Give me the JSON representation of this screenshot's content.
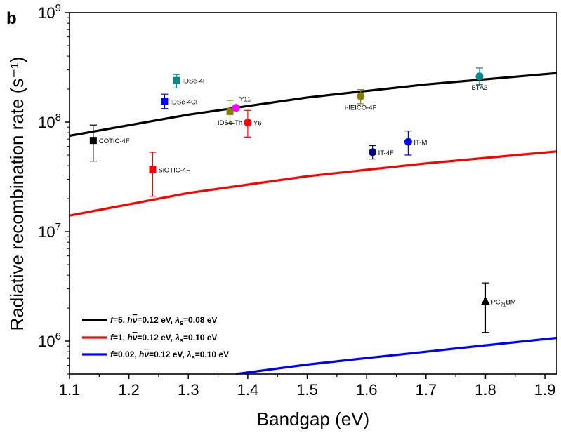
{
  "panel_label": "b",
  "chart_data": {
    "type": "scatter",
    "xlabel": "Bandgap (eV)",
    "ylabel": "Radiative recombination rate (s⁻¹)",
    "xlim": [
      1.1,
      1.92
    ],
    "ylim": [
      500000,
      1000000000
    ],
    "yscale": "log",
    "x_ticks": [
      "1.1",
      "1.2",
      "1.3",
      "1.4",
      "1.5",
      "1.6",
      "1.7",
      "1.8",
      "1.9"
    ],
    "y_ticks": [
      {
        "base": "10",
        "exp": "6",
        "value": 1000000
      },
      {
        "base": "10",
        "exp": "7",
        "value": 10000000
      },
      {
        "base": "10",
        "exp": "8",
        "value": 100000000
      },
      {
        "base": "10",
        "exp": "9",
        "value": 1000000000
      }
    ],
    "grid": false,
    "legend_position": "bottom-left",
    "curves": [
      {
        "color": "#000000",
        "x": [
          1.1,
          1.3,
          1.5,
          1.7,
          1.92
        ],
        "y": [
          75000000,
          117000000,
          168000000,
          221000000,
          280000000
        ],
        "legend": {
          "f": "5",
          "hv": "0.12 eV",
          "lambda": "0.08 eV"
        }
      },
      {
        "color": "#ff0000",
        "x": [
          1.1,
          1.3,
          1.5,
          1.7,
          1.92
        ],
        "y": [
          14000000,
          22500000,
          32000000,
          42000000,
          54000000
        ],
        "legend": {
          "f": "1",
          "hv": "0.12 eV",
          "lambda": "0.10 eV"
        }
      },
      {
        "color": "#0000ff",
        "x": [
          1.38,
          1.5,
          1.6,
          1.7,
          1.8,
          1.92
        ],
        "y": [
          500000,
          610000,
          700000,
          800000,
          915000,
          1070000
        ],
        "legend": {
          "f": "0.02",
          "hv": "0.12 eV",
          "lambda": "0.10 eV"
        }
      }
    ],
    "legend_label_parts": {
      "f": "f",
      "eq": "=",
      "sep": ", ",
      "hv": "h",
      "nu": "ν",
      "lambda": "λ",
      "lambda_sub": "s"
    },
    "points": [
      {
        "label": "COTIC-4F",
        "x": 1.14,
        "y": 68000000,
        "err": [
          44000000,
          94000000
        ],
        "color": "#000000",
        "marker": "square",
        "label_pos": "right"
      },
      {
        "label": "SiOTIC-4F",
        "x": 1.24,
        "y": 37000000,
        "err": [
          21000000,
          53000000
        ],
        "color": "#ff0000",
        "marker": "square",
        "label_pos": "right"
      },
      {
        "label": "IDSe-4F",
        "x": 1.28,
        "y": 240000000,
        "err": [
          205000000,
          272000000
        ],
        "color": "#008b8b",
        "marker": "square",
        "label_pos": "right"
      },
      {
        "label": "IDSe-4Cl",
        "x": 1.26,
        "y": 155000000,
        "err": [
          133000000,
          180000000
        ],
        "color": "#0000ff",
        "marker": "square",
        "label_pos": "right"
      },
      {
        "label": "IDSe-Th",
        "x": 1.37,
        "y": 125000000,
        "err": [
          98000000,
          158000000
        ],
        "color": "#808000",
        "marker": "square",
        "label_pos": "below"
      },
      {
        "label": "Y11",
        "x": 1.38,
        "y": 135000000,
        "err": null,
        "color": "#ff00ff",
        "marker": "circle",
        "label_pos": "upper-right"
      },
      {
        "label": "Y6",
        "x": 1.4,
        "y": 99000000,
        "err": [
          73000000,
          128000000
        ],
        "color": "#ff0000",
        "marker": "circle",
        "label_pos": "right"
      },
      {
        "label": "i-IEICO-4F",
        "x": 1.59,
        "y": 172000000,
        "err": [
          147000000,
          198000000
        ],
        "color": "#808000",
        "marker": "circle",
        "label_pos": "below"
      },
      {
        "label": "BTA3",
        "x": 1.79,
        "y": 262000000,
        "err": [
          220000000,
          312000000
        ],
        "color": "#008b8b",
        "marker": "circle",
        "label_pos": "below"
      },
      {
        "label": "IT-4F",
        "x": 1.61,
        "y": 53000000,
        "err": [
          46000000,
          61000000
        ],
        "color": "#00008b",
        "marker": "circle",
        "label_pos": "right"
      },
      {
        "label": "IT-M",
        "x": 1.67,
        "y": 66000000,
        "err": [
          50000000,
          83000000
        ],
        "color": "#0000ff",
        "marker": "circle",
        "label_pos": "right"
      },
      {
        "label": "PC71BM",
        "label_main": "PC",
        "label_sub": "71",
        "label_tail": "BM",
        "x": 1.8,
        "y": 2300000,
        "err": [
          1200000,
          3400000
        ],
        "color": "#000000",
        "marker": "triangle",
        "label_pos": "right"
      }
    ]
  }
}
